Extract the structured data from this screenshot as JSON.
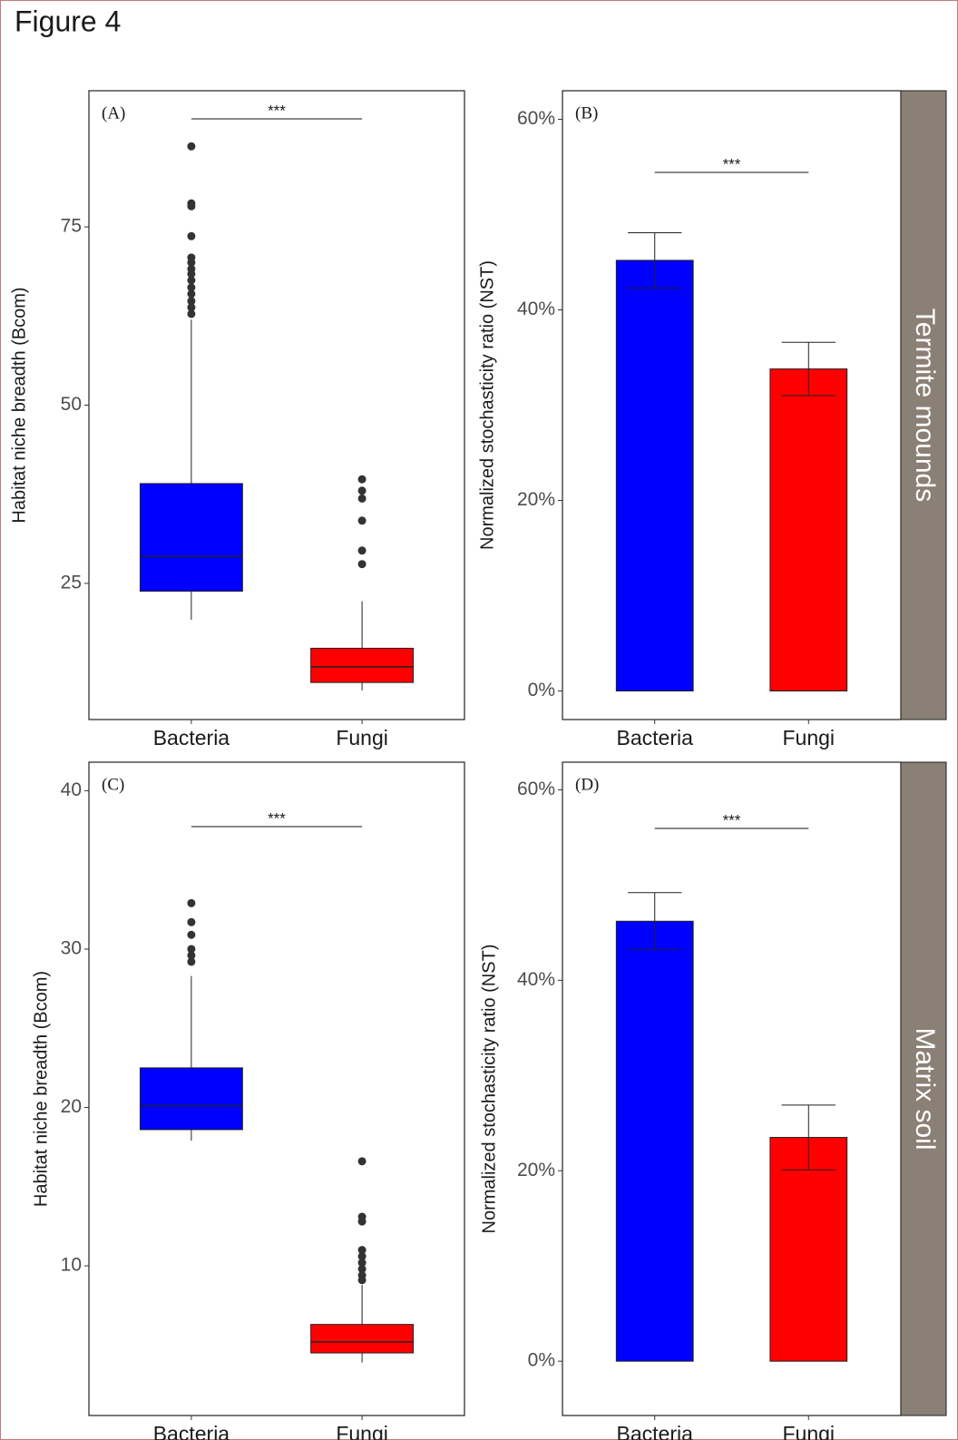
{
  "title": "Figure 4",
  "chart_data": [
    {
      "type": "box",
      "panel_label": "(A)",
      "y_label": "Habitat niche breadth (Bcom)",
      "annotation": "***",
      "categories": [
        "Bacteria",
        "Fungi"
      ],
      "colors": [
        "#0000ff",
        "#ff0000"
      ],
      "boxes": [
        {
          "whisker_low": 19.9,
          "q1": 23.9,
          "median": 28.8,
          "q3": 39.0,
          "whisker_high": 62.0,
          "outliers": [
            86.3,
            78.3,
            77.9,
            73.7,
            70.7,
            70.0,
            69.1,
            68.4,
            67.5,
            66.5,
            65.6,
            64.6,
            63.7,
            62.8
          ]
        },
        {
          "whisker_low": 10.0,
          "q1": 11.1,
          "median": 13.3,
          "q3": 15.9,
          "whisker_high": 22.5,
          "outliers": [
            39.6,
            38.0,
            36.9,
            33.8,
            29.6,
            27.7
          ]
        }
      ],
      "ylim": [
        5.9,
        94.1
      ],
      "yticks": [
        25,
        50,
        75
      ]
    },
    {
      "type": "bar",
      "panel_label": "(B)",
      "y_label": "Normalized stochasticity ratio (NST)",
      "annotation": "***",
      "strip_label": "Termite mounds",
      "strip_color": "#8b8076",
      "categories": [
        "Bacteria",
        "Fungi"
      ],
      "colors": [
        "#0000ff",
        "#ff0000"
      ],
      "values": [
        45.2,
        33.8
      ],
      "errors": [
        2.9,
        2.8
      ],
      "ylim": [
        -3.0,
        63.0
      ],
      "yticks": [
        {
          "value": 0,
          "label": "0%"
        },
        {
          "value": 20,
          "label": "20%"
        },
        {
          "value": 40,
          "label": "40%"
        },
        {
          "value": 60,
          "label": "60%"
        }
      ]
    },
    {
      "type": "box",
      "panel_label": "(C)",
      "y_label": "Habitat niche breadth (Bcom)",
      "annotation": "***",
      "categories": [
        "Bacteria",
        "Fungi"
      ],
      "colors": [
        "#0000ff",
        "#ff0000"
      ],
      "boxes": [
        {
          "whisker_low": 17.9,
          "q1": 18.6,
          "median": 20.1,
          "q3": 22.5,
          "whisker_high": 28.3,
          "outliers": [
            32.9,
            31.7,
            30.9,
            30.0,
            29.6,
            29.2
          ]
        },
        {
          "whisker_low": 3.9,
          "q1": 4.5,
          "median": 5.2,
          "q3": 6.3,
          "whisker_high": 8.8,
          "outliers": [
            16.6,
            13.1,
            12.8,
            11.0,
            10.6,
            10.2,
            9.8,
            9.4,
            9.1
          ]
        }
      ],
      "ylim": [
        0.55,
        41.8
      ],
      "yticks": [
        10,
        20,
        30,
        40
      ]
    },
    {
      "type": "bar",
      "panel_label": "(D)",
      "y_label": "Normalized stochasticity ratio (NST)",
      "annotation": "***",
      "strip_label": "Matrix soil",
      "strip_color": "#8b8076",
      "categories": [
        "Bacteria",
        "Fungi"
      ],
      "colors": [
        "#0000ff",
        "#ff0000"
      ],
      "values": [
        46.2,
        23.5
      ],
      "errors": [
        3.0,
        3.4
      ],
      "ylim": [
        -5.7,
        62.9
      ],
      "yticks": [
        {
          "value": 0,
          "label": "0%"
        },
        {
          "value": 20,
          "label": "20%"
        },
        {
          "value": 40,
          "label": "40%"
        },
        {
          "value": 60,
          "label": "60%"
        }
      ]
    }
  ]
}
